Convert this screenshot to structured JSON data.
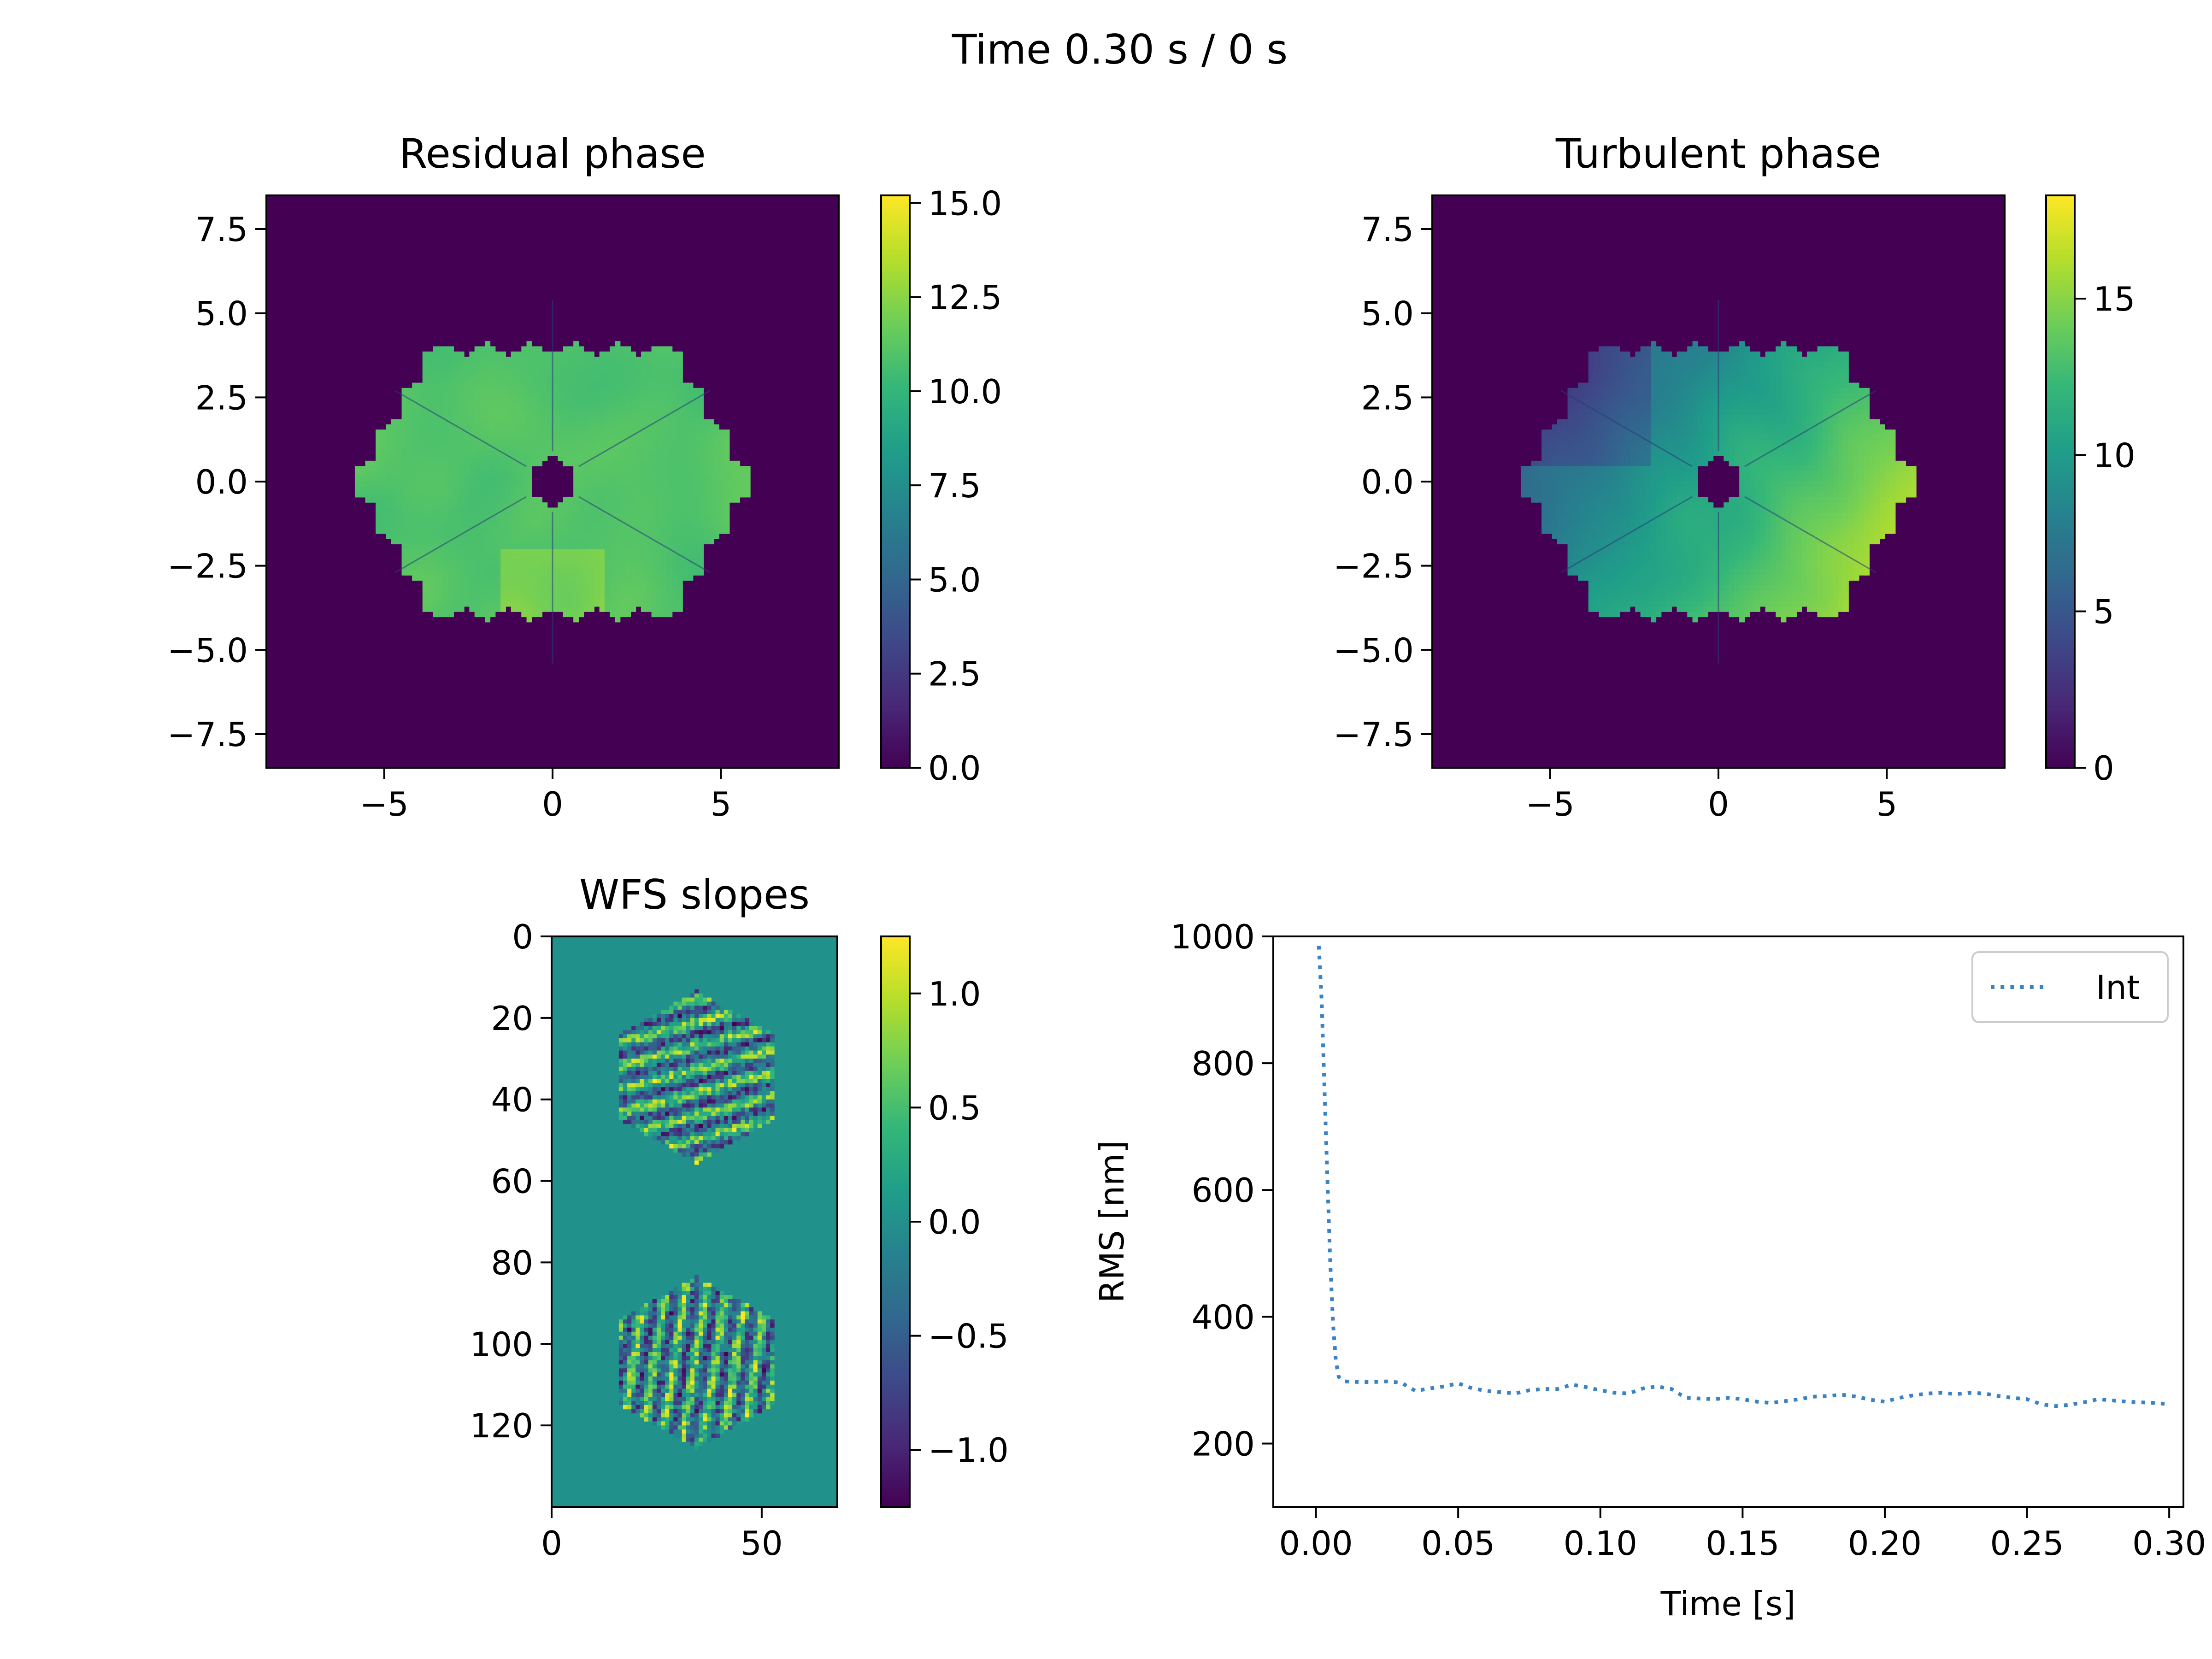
{
  "figure": {
    "suptitle": "Time 0.30 s / 0 s"
  },
  "colors": {
    "viridis": [
      "#440154",
      "#482878",
      "#3e4989",
      "#31688e",
      "#26828e",
      "#1f9e89",
      "#35b779",
      "#6ece58",
      "#b5de2b",
      "#fde725"
    ],
    "background": "#440154",
    "slopes_zero": "#21918c",
    "line": "#3b82c4"
  },
  "chart_data": [
    {
      "id": "residual",
      "type": "heatmap",
      "title": "Residual phase",
      "xlim": [
        -8.5,
        8.5
      ],
      "ylim": [
        -8.5,
        8.5
      ],
      "xticks": [
        -5,
        0,
        5
      ],
      "xtick_labels": [
        "−5",
        "0",
        "5"
      ],
      "yticks": [
        7.5,
        5.0,
        2.5,
        0.0,
        -2.5,
        -5.0,
        -7.5
      ],
      "ytick_labels": [
        "7.5",
        "5.0",
        "2.5",
        "0.0",
        "−2.5",
        "−5.0",
        "−7.5"
      ],
      "colorbar": {
        "range": [
          0,
          15.2
        ],
        "ticks": [
          0,
          2.5,
          5,
          7.5,
          10,
          12.5,
          15
        ],
        "tick_labels": [
          "0.0",
          "2.5",
          "5.0",
          "7.5",
          "10.0",
          "12.5",
          "15.0"
        ]
      },
      "pupil": {
        "segments": "18 hexagonal segments + central obscuration",
        "outer_radius": 5.4,
        "segment_flat_to_flat": 1.3
      },
      "value_range_in_pupil": [
        8,
        15
      ]
    },
    {
      "id": "turbulent",
      "type": "heatmap",
      "title": "Turbulent phase",
      "xlim": [
        -8.5,
        8.5
      ],
      "ylim": [
        -8.5,
        8.5
      ],
      "xticks": [
        -5,
        0,
        5
      ],
      "xtick_labels": [
        "−5",
        "0",
        "5"
      ],
      "yticks": [
        7.5,
        5.0,
        2.5,
        0.0,
        -2.5,
        -5.0,
        -7.5
      ],
      "ytick_labels": [
        "7.5",
        "5.0",
        "2.5",
        "0.0",
        "−2.5",
        "−5.0",
        "−7.5"
      ],
      "colorbar": {
        "range": [
          0,
          18.3
        ],
        "ticks": [
          0,
          5,
          10,
          15
        ],
        "tick_labels": [
          "0",
          "5",
          "10",
          "15"
        ]
      },
      "value_range_in_pupil": [
        4,
        18
      ]
    },
    {
      "id": "slopes",
      "type": "heatmap",
      "title": "WFS slopes",
      "xlim": [
        0,
        68
      ],
      "ylim": [
        140,
        0
      ],
      "xticks": [
        0,
        50
      ],
      "xtick_labels": [
        "0",
        "50"
      ],
      "yticks": [
        0,
        20,
        40,
        60,
        80,
        100,
        120
      ],
      "ytick_labels": [
        "0",
        "20",
        "40",
        "60",
        "80",
        "100",
        "120"
      ],
      "colorbar": {
        "range": [
          -1.25,
          1.25
        ],
        "ticks": [
          1.0,
          0.5,
          0.0,
          -0.5,
          -1.0
        ],
        "tick_labels": [
          "1.0",
          "0.5",
          "0.0",
          "−0.5",
          "−1.0"
        ]
      },
      "blocks": [
        {
          "center": [
            34,
            34
          ],
          "radius": 21
        },
        {
          "center": [
            34,
            104
          ],
          "radius": 21
        }
      ]
    },
    {
      "id": "rms",
      "type": "line",
      "title": "",
      "xlabel": "Time [s]",
      "ylabel": "RMS [nm]",
      "xlim": [
        -0.015,
        0.305
      ],
      "ylim": [
        100,
        1000
      ],
      "xticks": [
        0.0,
        0.05,
        0.1,
        0.15,
        0.2,
        0.25,
        0.3
      ],
      "xtick_labels": [
        "0.00",
        "0.05",
        "0.10",
        "0.15",
        "0.20",
        "0.25",
        "0.30"
      ],
      "yticks": [
        1000,
        800,
        600,
        400,
        200
      ],
      "ytick_labels": [
        "1000",
        "800",
        "600",
        "400",
        "200"
      ],
      "legend": {
        "position": "top-right",
        "entries": [
          "Int"
        ]
      },
      "series": [
        {
          "name": "Int",
          "style": "dotted",
          "x": [
            0.001,
            0.002,
            0.003,
            0.004,
            0.005,
            0.006,
            0.007,
            0.008,
            0.01,
            0.015,
            0.02,
            0.025,
            0.03,
            0.035,
            0.04,
            0.045,
            0.05,
            0.055,
            0.06,
            0.065,
            0.07,
            0.075,
            0.08,
            0.085,
            0.09,
            0.095,
            0.1,
            0.105,
            0.11,
            0.115,
            0.12,
            0.125,
            0.13,
            0.135,
            0.14,
            0.145,
            0.15,
            0.155,
            0.16,
            0.165,
            0.17,
            0.175,
            0.18,
            0.185,
            0.19,
            0.195,
            0.2,
            0.205,
            0.21,
            0.215,
            0.22,
            0.225,
            0.23,
            0.235,
            0.24,
            0.245,
            0.25,
            0.255,
            0.26,
            0.265,
            0.27,
            0.275,
            0.28,
            0.285,
            0.29,
            0.295,
            0.3
          ],
          "y": [
            985,
            900,
            760,
            620,
            490,
            390,
            330,
            305,
            298,
            297,
            297,
            298,
            296,
            283,
            287,
            290,
            295,
            287,
            283,
            281,
            279,
            284,
            286,
            286,
            293,
            289,
            284,
            280,
            279,
            287,
            290,
            286,
            272,
            271,
            270,
            272,
            270,
            266,
            264,
            267,
            270,
            274,
            275,
            277,
            274,
            269,
            266,
            272,
            276,
            279,
            280,
            278,
            280,
            279,
            275,
            272,
            270,
            262,
            259,
            261,
            265,
            270,
            268,
            266,
            265,
            264,
            262
          ]
        }
      ]
    }
  ]
}
